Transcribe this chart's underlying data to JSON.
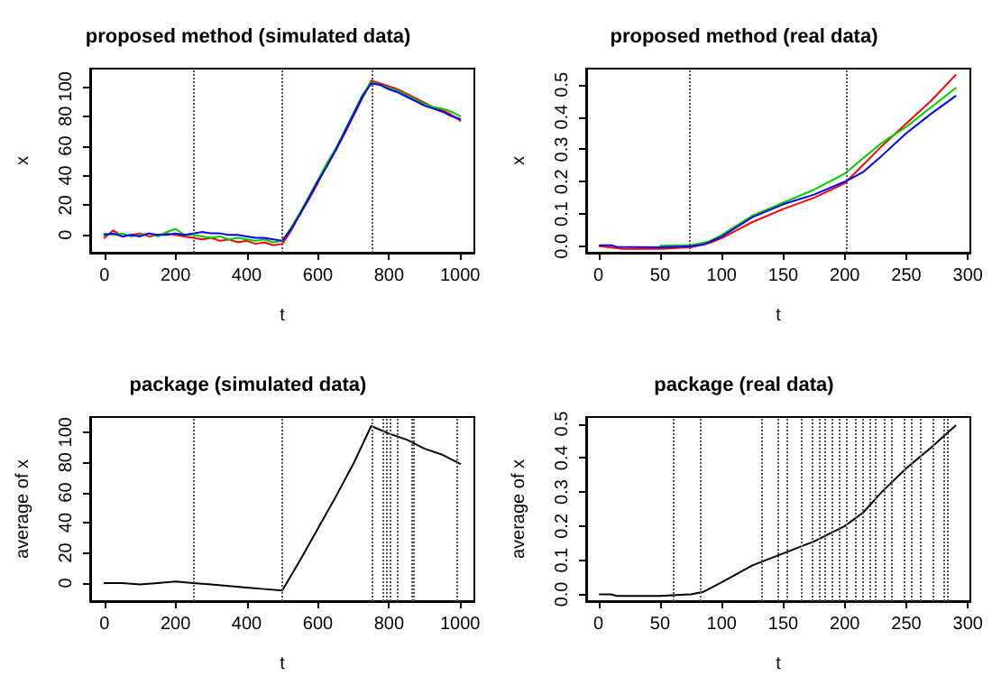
{
  "chart_data": [
    {
      "type": "line",
      "title": "proposed method (simulated data)",
      "xlabel": "t",
      "ylabel": "x",
      "x": [
        0,
        25,
        50,
        75,
        100,
        125,
        150,
        175,
        200,
        225,
        250,
        275,
        300,
        325,
        350,
        375,
        400,
        425,
        450,
        475,
        500,
        525,
        550,
        575,
        600,
        625,
        650,
        675,
        700,
        725,
        750,
        775,
        800,
        825,
        850,
        875,
        900,
        925,
        950,
        975,
        1000
      ],
      "xlim": [
        -40,
        1040
      ],
      "ylim": [
        -12,
        112
      ],
      "xticks": [
        0,
        200,
        400,
        600,
        800,
        1000
      ],
      "yticks": [
        0,
        20,
        40,
        60,
        80,
        100
      ],
      "marker": "none",
      "line_style": "solid",
      "series": [
        {
          "color": "#ff0000",
          "values": [
            -2,
            3,
            -1,
            0,
            1,
            -1,
            0,
            1,
            0,
            -1,
            -2,
            -3,
            -2,
            -4,
            -3,
            -5,
            -4,
            -6,
            -5,
            -7,
            -6,
            3,
            14,
            24,
            35,
            47,
            57,
            68,
            80,
            92,
            104,
            102,
            100,
            98,
            95,
            92,
            89,
            86,
            84,
            81,
            77
          ]
        },
        {
          "color": "#00cd00",
          "values": [
            1,
            0,
            1,
            -1,
            0,
            1,
            -1,
            2,
            4,
            0,
            0,
            -1,
            -2,
            -1,
            -3,
            -2,
            -3,
            -4,
            -3,
            -5,
            -4,
            5,
            15,
            26,
            37,
            48,
            58,
            70,
            82,
            94,
            103,
            101,
            99,
            97,
            94,
            91,
            88,
            86,
            85,
            83,
            80
          ]
        },
        {
          "color": "#0000ff",
          "values": [
            0,
            1,
            -1,
            0,
            -1,
            1,
            0,
            0,
            1,
            0,
            1,
            2,
            1,
            1,
            0,
            0,
            -1,
            -2,
            -2,
            -3,
            -4,
            4,
            14,
            25,
            36,
            46,
            57,
            69,
            81,
            93,
            102,
            101,
            98,
            96,
            93,
            90,
            87,
            85,
            83,
            80,
            78
          ]
        }
      ],
      "ref_lines": [
        {
          "axis": "x",
          "value": 250,
          "color": "#555555",
          "line_style": "dotted"
        },
        {
          "axis": "x",
          "value": 500,
          "color": "#555555",
          "line_style": "dotted"
        },
        {
          "axis": "x",
          "value": 750,
          "color": "#555555",
          "line_style": "dotted"
        }
      ]
    },
    {
      "type": "line",
      "title": "proposed method (real data)",
      "xlabel": "t",
      "ylabel": "x",
      "xlim": [
        -10,
        302
      ],
      "ylim": [
        -0.02,
        0.55
      ],
      "xticks": [
        0,
        50,
        100,
        150,
        200,
        250,
        300
      ],
      "yticks": [
        {
          "value": 0,
          "label": "0.0"
        },
        0.1,
        0.2,
        0.3,
        0.4,
        0.5
      ],
      "marker": "none",
      "line_style": "solid",
      "series": [
        {
          "color": "#ff0000",
          "x": [
            1,
            20,
            50,
            75,
            90,
            100,
            125,
            150,
            175,
            200,
            230,
            250,
            270,
            290
          ],
          "values": [
            0,
            -0.008,
            -0.008,
            -0.003,
            0.01,
            0.025,
            0.075,
            0.115,
            0.15,
            0.195,
            0.31,
            0.38,
            0.45,
            0.53
          ]
        },
        {
          "color": "#00cd00",
          "x": [
            50,
            75,
            90,
            100,
            125,
            150,
            175,
            200,
            230,
            250,
            270,
            290
          ],
          "values": [
            0.002,
            0.003,
            0.015,
            0.035,
            0.095,
            0.135,
            0.175,
            0.225,
            0.32,
            0.37,
            0.43,
            0.49
          ]
        },
        {
          "color": "#0000ff",
          "x": [
            1,
            10,
            15,
            50,
            75,
            85,
            100,
            125,
            150,
            175,
            200,
            215,
            230,
            250,
            270,
            290
          ],
          "values": [
            0.003,
            0.003,
            -0.002,
            -0.003,
            0,
            0.005,
            0.03,
            0.09,
            0.13,
            0.16,
            0.2,
            0.23,
            0.28,
            0.35,
            0.41,
            0.465
          ]
        }
      ],
      "ref_lines": [
        {
          "axis": "x",
          "value": 74,
          "color": "#555555",
          "line_style": "dotted"
        },
        {
          "axis": "x",
          "value": 201,
          "color": "#555555",
          "line_style": "dotted"
        }
      ]
    },
    {
      "type": "line",
      "title": "package (simulated data)",
      "xlabel": "t",
      "ylabel": "average of x",
      "x": [
        0,
        50,
        100,
        150,
        200,
        250,
        300,
        350,
        400,
        450,
        500,
        550,
        600,
        650,
        700,
        750,
        800,
        850,
        900,
        950,
        1000
      ],
      "xlim": [
        -40,
        1040
      ],
      "ylim": [
        -12,
        110
      ],
      "xticks": [
        0,
        200,
        400,
        600,
        800,
        1000
      ],
      "yticks": [
        0,
        20,
        40,
        60,
        80,
        100
      ],
      "marker": "none",
      "line_style": "solid",
      "series": [
        {
          "color": "#000000",
          "values": [
            0,
            0,
            -1,
            0,
            1,
            0,
            -1,
            -2,
            -3,
            -4,
            -5,
            15,
            36,
            57,
            79,
            104,
            99,
            95,
            89,
            85,
            79
          ]
        }
      ],
      "ref_lines": [
        {
          "axis": "x",
          "value": 250,
          "color": "#555555",
          "line_style": "dotted"
        },
        {
          "axis": "x",
          "value": 500,
          "color": "#555555",
          "line_style": "dotted"
        },
        {
          "axis": "x",
          "value": 750,
          "color": "#555555",
          "line_style": "dotted"
        },
        {
          "axis": "x",
          "value": 785,
          "color": "#555555",
          "line_style": "dotted"
        },
        {
          "axis": "x",
          "value": 795,
          "color": "#555555",
          "line_style": "dotted"
        },
        {
          "axis": "x",
          "value": 805,
          "color": "#555555",
          "line_style": "dotted"
        },
        {
          "axis": "x",
          "value": 825,
          "color": "#555555",
          "line_style": "dotted"
        },
        {
          "axis": "x",
          "value": 865,
          "color": "#555555",
          "line_style": "dotted"
        },
        {
          "axis": "x",
          "value": 870,
          "color": "#555555",
          "line_style": "dotted"
        },
        {
          "axis": "x",
          "value": 990,
          "color": "#555555",
          "line_style": "dotted"
        }
      ]
    },
    {
      "type": "line",
      "title": "package (real data)",
      "xlabel": "t",
      "ylabel": "average of x",
      "xlim": [
        -10,
        302
      ],
      "ylim": [
        -0.02,
        0.52
      ],
      "xticks": [
        0,
        50,
        100,
        150,
        200,
        250,
        300
      ],
      "yticks": [
        {
          "value": 0,
          "label": "0.0"
        },
        0.1,
        0.2,
        0.3,
        0.4,
        0.5
      ],
      "marker": "none",
      "line_style": "solid",
      "series": [
        {
          "color": "#000000",
          "x": [
            1,
            10,
            15,
            50,
            75,
            85,
            100,
            125,
            150,
            175,
            200,
            215,
            230,
            250,
            270,
            290
          ],
          "values": [
            0,
            0,
            -0.005,
            -0.005,
            0,
            0.007,
            0.035,
            0.085,
            0.12,
            0.155,
            0.2,
            0.24,
            0.3,
            0.37,
            0.43,
            0.495
          ]
        }
      ],
      "ref_lines": [
        {
          "axis": "x",
          "value": 60,
          "color": "#555555",
          "line_style": "dotted"
        },
        {
          "axis": "x",
          "value": 82,
          "color": "#555555",
          "line_style": "dotted"
        },
        {
          "axis": "x",
          "value": 132,
          "color": "#555555",
          "line_style": "dotted"
        },
        {
          "axis": "x",
          "value": 145,
          "color": "#555555",
          "line_style": "dotted"
        },
        {
          "axis": "x",
          "value": 153,
          "color": "#555555",
          "line_style": "dotted"
        },
        {
          "axis": "x",
          "value": 164,
          "color": "#555555",
          "line_style": "dotted"
        },
        {
          "axis": "x",
          "value": 174,
          "color": "#555555",
          "line_style": "dotted"
        },
        {
          "axis": "x",
          "value": 179,
          "color": "#555555",
          "line_style": "dotted"
        },
        {
          "axis": "x",
          "value": 184,
          "color": "#555555",
          "line_style": "dotted"
        },
        {
          "axis": "x",
          "value": 190,
          "color": "#555555",
          "line_style": "dotted"
        },
        {
          "axis": "x",
          "value": 196,
          "color": "#555555",
          "line_style": "dotted"
        },
        {
          "axis": "x",
          "value": 201,
          "color": "#555555",
          "line_style": "dotted"
        },
        {
          "axis": "x",
          "value": 208,
          "color": "#555555",
          "line_style": "dotted"
        },
        {
          "axis": "x",
          "value": 215,
          "color": "#555555",
          "line_style": "dotted"
        },
        {
          "axis": "x",
          "value": 221,
          "color": "#555555",
          "line_style": "dotted"
        },
        {
          "axis": "x",
          "value": 225,
          "color": "#555555",
          "line_style": "dotted"
        },
        {
          "axis": "x",
          "value": 232,
          "color": "#555555",
          "line_style": "dotted"
        },
        {
          "axis": "x",
          "value": 238,
          "color": "#555555",
          "line_style": "dotted"
        },
        {
          "axis": "x",
          "value": 248,
          "color": "#555555",
          "line_style": "dotted"
        },
        {
          "axis": "x",
          "value": 254,
          "color": "#555555",
          "line_style": "dotted"
        },
        {
          "axis": "x",
          "value": 261,
          "color": "#555555",
          "line_style": "dotted"
        },
        {
          "axis": "x",
          "value": 271,
          "color": "#555555",
          "line_style": "dotted"
        },
        {
          "axis": "x",
          "value": 280,
          "color": "#555555",
          "line_style": "dotted"
        },
        {
          "axis": "x",
          "value": 284,
          "color": "#555555",
          "line_style": "dotted"
        }
      ]
    }
  ]
}
